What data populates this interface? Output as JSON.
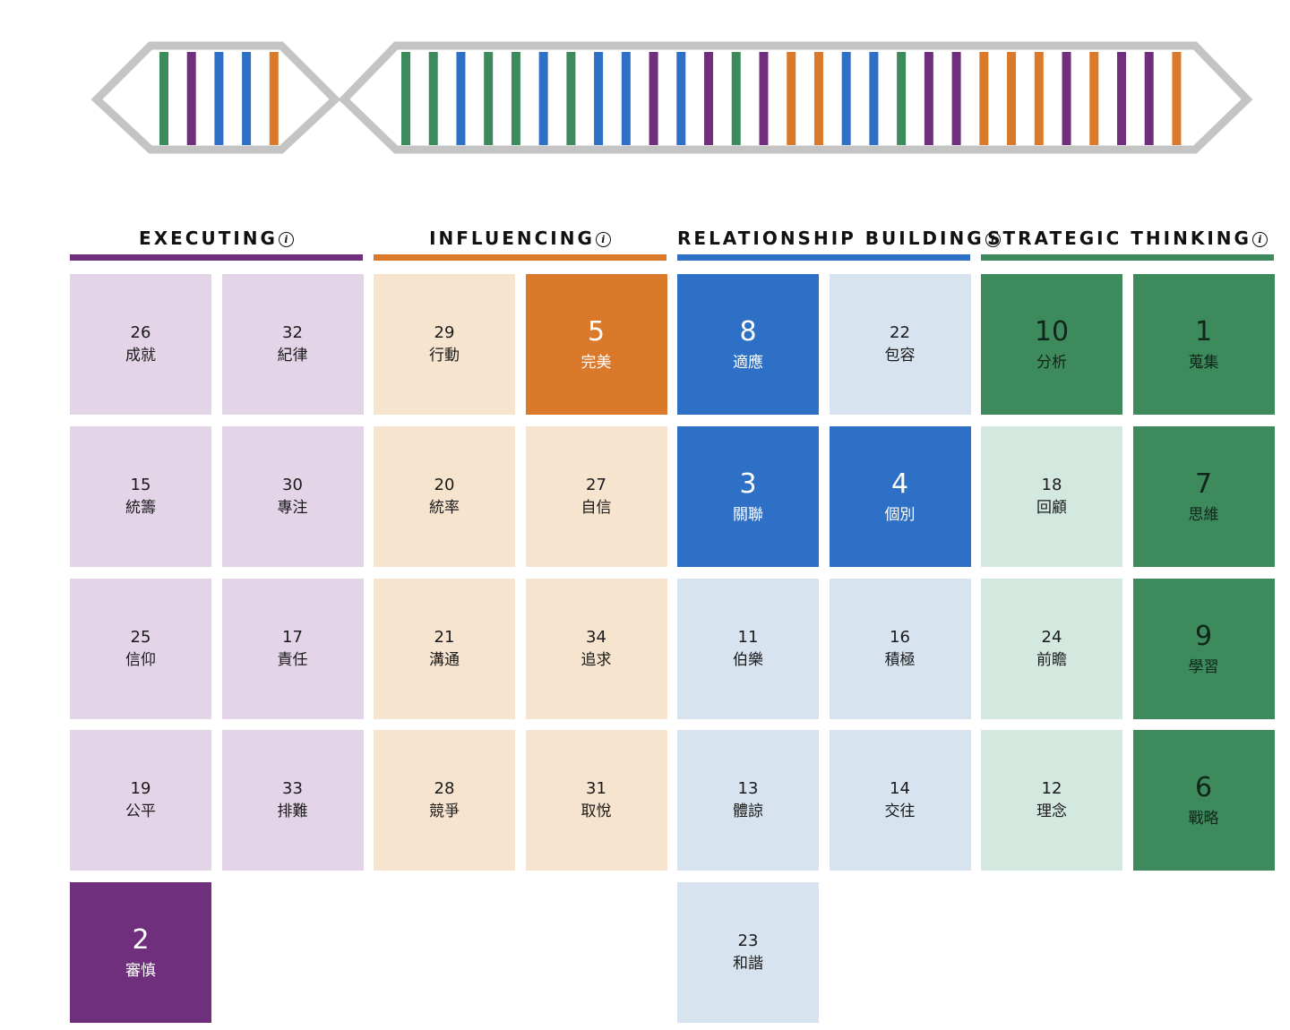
{
  "colors": {
    "executing": "#6f2f7c",
    "influencing": "#db792b",
    "relationship": "#2d70c6",
    "strategic": "#3d8a5c",
    "executing_light": "#e4d4e8",
    "influencing_light": "#f7e4cf",
    "relationship_light": "#d7e3ef",
    "strategic_light": "#d3e8df",
    "frame": "#c4c4c4"
  },
  "dna": {
    "left_segment": [
      "strategic",
      "executing",
      "relationship",
      "relationship",
      "influencing"
    ],
    "right_segment": [
      "strategic",
      "strategic",
      "relationship",
      "strategic",
      "strategic",
      "relationship",
      "strategic",
      "relationship",
      "relationship",
      "executing",
      "relationship",
      "executing",
      "strategic",
      "executing",
      "influencing",
      "influencing",
      "relationship",
      "relationship",
      "strategic",
      "executing",
      "executing",
      "influencing",
      "influencing",
      "influencing",
      "executing",
      "influencing",
      "executing",
      "executing",
      "influencing"
    ]
  },
  "domains": [
    {
      "key": "executing",
      "title": "EXECUTING",
      "info_icon": "i",
      "tiles": [
        {
          "rank": "26",
          "name": "成就",
          "top": false
        },
        {
          "rank": "32",
          "name": "紀律",
          "top": false
        },
        {
          "rank": "15",
          "name": "統籌",
          "top": false
        },
        {
          "rank": "30",
          "name": "專注",
          "top": false
        },
        {
          "rank": "25",
          "name": "信仰",
          "top": false
        },
        {
          "rank": "17",
          "name": "責任",
          "top": false
        },
        {
          "rank": "19",
          "name": "公平",
          "top": false
        },
        {
          "rank": "33",
          "name": "排難",
          "top": false
        },
        {
          "rank": "2",
          "name": "審慎",
          "top": true
        }
      ]
    },
    {
      "key": "influencing",
      "title": "INFLUENCING",
      "info_icon": "i",
      "tiles": [
        {
          "rank": "29",
          "name": "行動",
          "top": false
        },
        {
          "rank": "5",
          "name": "完美",
          "top": true
        },
        {
          "rank": "20",
          "name": "統率",
          "top": false
        },
        {
          "rank": "27",
          "name": "自信",
          "top": false
        },
        {
          "rank": "21",
          "name": "溝通",
          "top": false
        },
        {
          "rank": "34",
          "name": "追求",
          "top": false
        },
        {
          "rank": "28",
          "name": "競爭",
          "top": false
        },
        {
          "rank": "31",
          "name": "取悅",
          "top": false
        }
      ]
    },
    {
      "key": "relationship",
      "title": "RELATIONSHIP BUILDING",
      "info_icon": "i",
      "tiles": [
        {
          "rank": "8",
          "name": "適應",
          "top": true
        },
        {
          "rank": "22",
          "name": "包容",
          "top": false
        },
        {
          "rank": "3",
          "name": "關聯",
          "top": true
        },
        {
          "rank": "4",
          "name": "個別",
          "top": true
        },
        {
          "rank": "11",
          "name": "伯樂",
          "top": false
        },
        {
          "rank": "16",
          "name": "積極",
          "top": false
        },
        {
          "rank": "13",
          "name": "體諒",
          "top": false
        },
        {
          "rank": "14",
          "name": "交往",
          "top": false
        },
        {
          "rank": "23",
          "name": "和諧",
          "top": false
        }
      ]
    },
    {
      "key": "strategic",
      "title": "STRATEGIC THINKING",
      "info_icon": "i",
      "tiles": [
        {
          "rank": "10",
          "name": "分析",
          "top": true
        },
        {
          "rank": "1",
          "name": "蒐集",
          "top": true
        },
        {
          "rank": "18",
          "name": "回顧",
          "top": false
        },
        {
          "rank": "7",
          "name": "思維",
          "top": true
        },
        {
          "rank": "24",
          "name": "前瞻",
          "top": false
        },
        {
          "rank": "9",
          "name": "學習",
          "top": true
        },
        {
          "rank": "12",
          "name": "理念",
          "top": false
        },
        {
          "rank": "6",
          "name": "戰略",
          "top": true
        }
      ]
    }
  ]
}
